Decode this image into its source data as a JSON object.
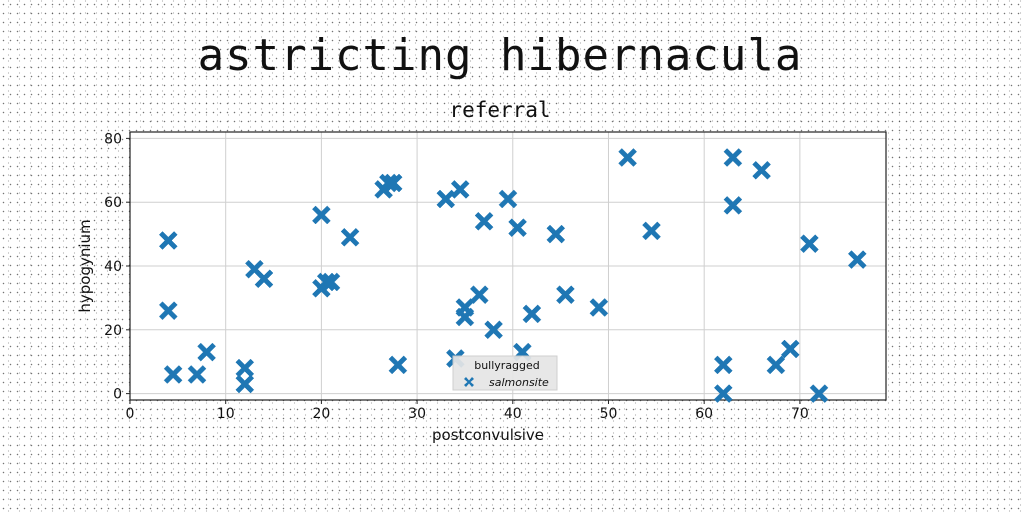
{
  "title": "astricting hibernacula",
  "chart_data": {
    "type": "scatter",
    "subtitle": "referral",
    "xlabel": "postconvulsive",
    "ylabel": "hypogynium",
    "xlim": [
      0,
      79
    ],
    "ylim": [
      -2,
      82
    ],
    "xticks": [
      0,
      10,
      20,
      30,
      40,
      50,
      60,
      70
    ],
    "yticks": [
      0,
      20,
      40,
      60,
      80
    ],
    "grid": true,
    "legend": {
      "title": "bullyragged",
      "placement": "bottom-center"
    },
    "series": [
      {
        "name": "salmonsite",
        "color": "#1f77b4",
        "marker": "x-filled",
        "points": [
          {
            "x": 4,
            "y": 48
          },
          {
            "x": 4,
            "y": 26
          },
          {
            "x": 4.5,
            "y": 6
          },
          {
            "x": 7,
            "y": 6
          },
          {
            "x": 8,
            "y": 13
          },
          {
            "x": 12,
            "y": 8
          },
          {
            "x": 12,
            "y": 3
          },
          {
            "x": 13,
            "y": 39
          },
          {
            "x": 14,
            "y": 36
          },
          {
            "x": 20,
            "y": 56
          },
          {
            "x": 20,
            "y": 33
          },
          {
            "x": 20.5,
            "y": 35
          },
          {
            "x": 21,
            "y": 35
          },
          {
            "x": 23,
            "y": 49
          },
          {
            "x": 26.5,
            "y": 64
          },
          {
            "x": 27,
            "y": 66
          },
          {
            "x": 27.5,
            "y": 66
          },
          {
            "x": 28,
            "y": 9
          },
          {
            "x": 33,
            "y": 61
          },
          {
            "x": 34.5,
            "y": 64
          },
          {
            "x": 34,
            "y": 11
          },
          {
            "x": 35,
            "y": 27
          },
          {
            "x": 35,
            "y": 24
          },
          {
            "x": 36.5,
            "y": 31
          },
          {
            "x": 37,
            "y": 54
          },
          {
            "x": 38,
            "y": 20
          },
          {
            "x": 39.5,
            "y": 61
          },
          {
            "x": 40.5,
            "y": 52
          },
          {
            "x": 41,
            "y": 13
          },
          {
            "x": 42,
            "y": 25
          },
          {
            "x": 44.5,
            "y": 50
          },
          {
            "x": 45.5,
            "y": 31
          },
          {
            "x": 49,
            "y": 27
          },
          {
            "x": 52,
            "y": 74
          },
          {
            "x": 54.5,
            "y": 51
          },
          {
            "x": 62,
            "y": 9
          },
          {
            "x": 62,
            "y": 0
          },
          {
            "x": 63,
            "y": 74
          },
          {
            "x": 63,
            "y": 59
          },
          {
            "x": 66,
            "y": 70
          },
          {
            "x": 67.5,
            "y": 9
          },
          {
            "x": 69,
            "y": 14
          },
          {
            "x": 71,
            "y": 47
          },
          {
            "x": 72,
            "y": 0
          },
          {
            "x": 76,
            "y": 42
          }
        ]
      }
    ]
  }
}
